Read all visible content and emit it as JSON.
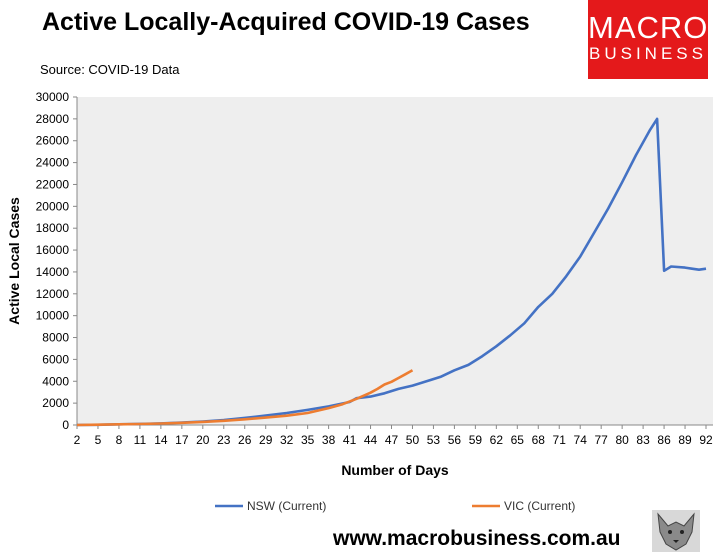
{
  "header": {
    "title": "Active Locally-Acquired COVID-19 Cases",
    "source": "Source: COVID-19 Data"
  },
  "logo": {
    "line1": "MACRO",
    "line2": "BUSINESS"
  },
  "footer": {
    "url": "www.macrobusiness.com.au"
  },
  "colors": {
    "nsw": "#4472C4",
    "vic": "#ED7D31",
    "plot_bg": "#EEEEEE",
    "logo_bg": "#E4191B"
  },
  "chart_data": {
    "type": "line",
    "xlabel": "Number of Days",
    "ylabel": "Active Local Cases",
    "xlim": [
      2,
      93
    ],
    "ylim": [
      0,
      30000
    ],
    "x_ticks": [
      "2",
      "5",
      "8",
      "11",
      "14",
      "17",
      "20",
      "23",
      "26",
      "29",
      "32",
      "35",
      "38",
      "41",
      "44",
      "47",
      "50",
      "53",
      "56",
      "59",
      "62",
      "65",
      "68",
      "71",
      "74",
      "77",
      "80",
      "83",
      "86",
      "89",
      "92"
    ],
    "y_ticks": [
      "0",
      "2000",
      "4000",
      "6000",
      "8000",
      "10000",
      "12000",
      "14000",
      "16000",
      "18000",
      "20000",
      "22000",
      "24000",
      "26000",
      "28000",
      "30000"
    ],
    "grid": false,
    "legend_position": "bottom",
    "series": [
      {
        "name": "NSW (Current)",
        "color": "#4472C4",
        "points": [
          [
            2,
            0
          ],
          [
            5,
            20
          ],
          [
            8,
            60
          ],
          [
            11,
            100
          ],
          [
            14,
            150
          ],
          [
            17,
            230
          ],
          [
            20,
            320
          ],
          [
            23,
            450
          ],
          [
            26,
            650
          ],
          [
            29,
            860
          ],
          [
            32,
            1100
          ],
          [
            35,
            1380
          ],
          [
            38,
            1700
          ],
          [
            41,
            2100
          ],
          [
            42,
            2450
          ],
          [
            44,
            2600
          ],
          [
            46,
            2900
          ],
          [
            48,
            3300
          ],
          [
            50,
            3600
          ],
          [
            52,
            4000
          ],
          [
            54,
            4400
          ],
          [
            56,
            5000
          ],
          [
            58,
            5500
          ],
          [
            60,
            6300
          ],
          [
            62,
            7200
          ],
          [
            64,
            8200
          ],
          [
            66,
            9300
          ],
          [
            68,
            10800
          ],
          [
            70,
            12000
          ],
          [
            72,
            13600
          ],
          [
            74,
            15400
          ],
          [
            76,
            17600
          ],
          [
            78,
            19800
          ],
          [
            80,
            22200
          ],
          [
            82,
            24700
          ],
          [
            84,
            27000
          ],
          [
            85,
            28000
          ],
          [
            86,
            14100
          ],
          [
            87,
            14500
          ],
          [
            89,
            14400
          ],
          [
            90,
            14300
          ],
          [
            91,
            14200
          ],
          [
            92,
            14300
          ]
        ]
      },
      {
        "name": "VIC (Current)",
        "color": "#ED7D31",
        "points": [
          [
            2,
            0
          ],
          [
            5,
            30
          ],
          [
            8,
            60
          ],
          [
            11,
            90
          ],
          [
            14,
            140
          ],
          [
            17,
            200
          ],
          [
            20,
            280
          ],
          [
            23,
            380
          ],
          [
            26,
            520
          ],
          [
            29,
            680
          ],
          [
            32,
            850
          ],
          [
            35,
            1100
          ],
          [
            38,
            1550
          ],
          [
            40,
            1900
          ],
          [
            42,
            2400
          ],
          [
            44,
            2950
          ],
          [
            45,
            3300
          ],
          [
            46,
            3700
          ],
          [
            47,
            3950
          ],
          [
            48,
            4300
          ],
          [
            49,
            4650
          ],
          [
            50,
            5000
          ]
        ]
      }
    ]
  }
}
